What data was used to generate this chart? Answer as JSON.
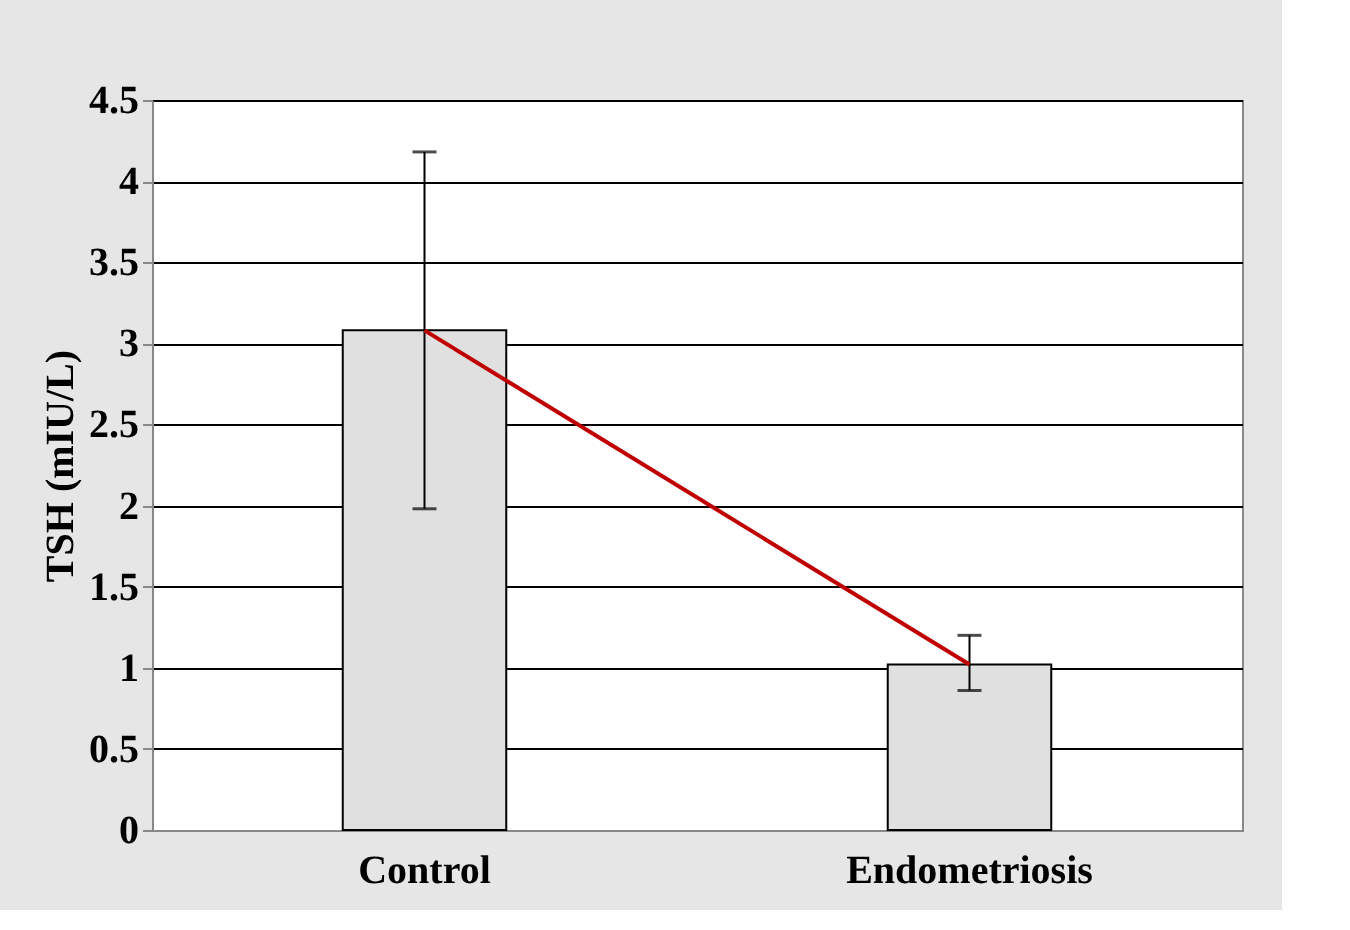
{
  "chart_data": {
    "type": "bar",
    "ylabel": "TSH (mIU/L)",
    "categories": [
      "Control",
      "Endometriosis"
    ],
    "series": [
      {
        "color": "#e0e0e0",
        "values": [
          3.08,
          1.02
        ],
        "errors": [
          [
            1.98,
            4.18
          ],
          [
            0.86,
            1.2
          ]
        ]
      },
      {
        "type": "line",
        "color": "#c00000",
        "values": [
          3.08,
          1.02
        ]
      }
    ],
    "ylim": [
      0,
      4.5
    ],
    "yticks": [
      0,
      0.5,
      1,
      1.5,
      2,
      2.5,
      3,
      3.5,
      4,
      4.5
    ],
    "grid": "y"
  }
}
